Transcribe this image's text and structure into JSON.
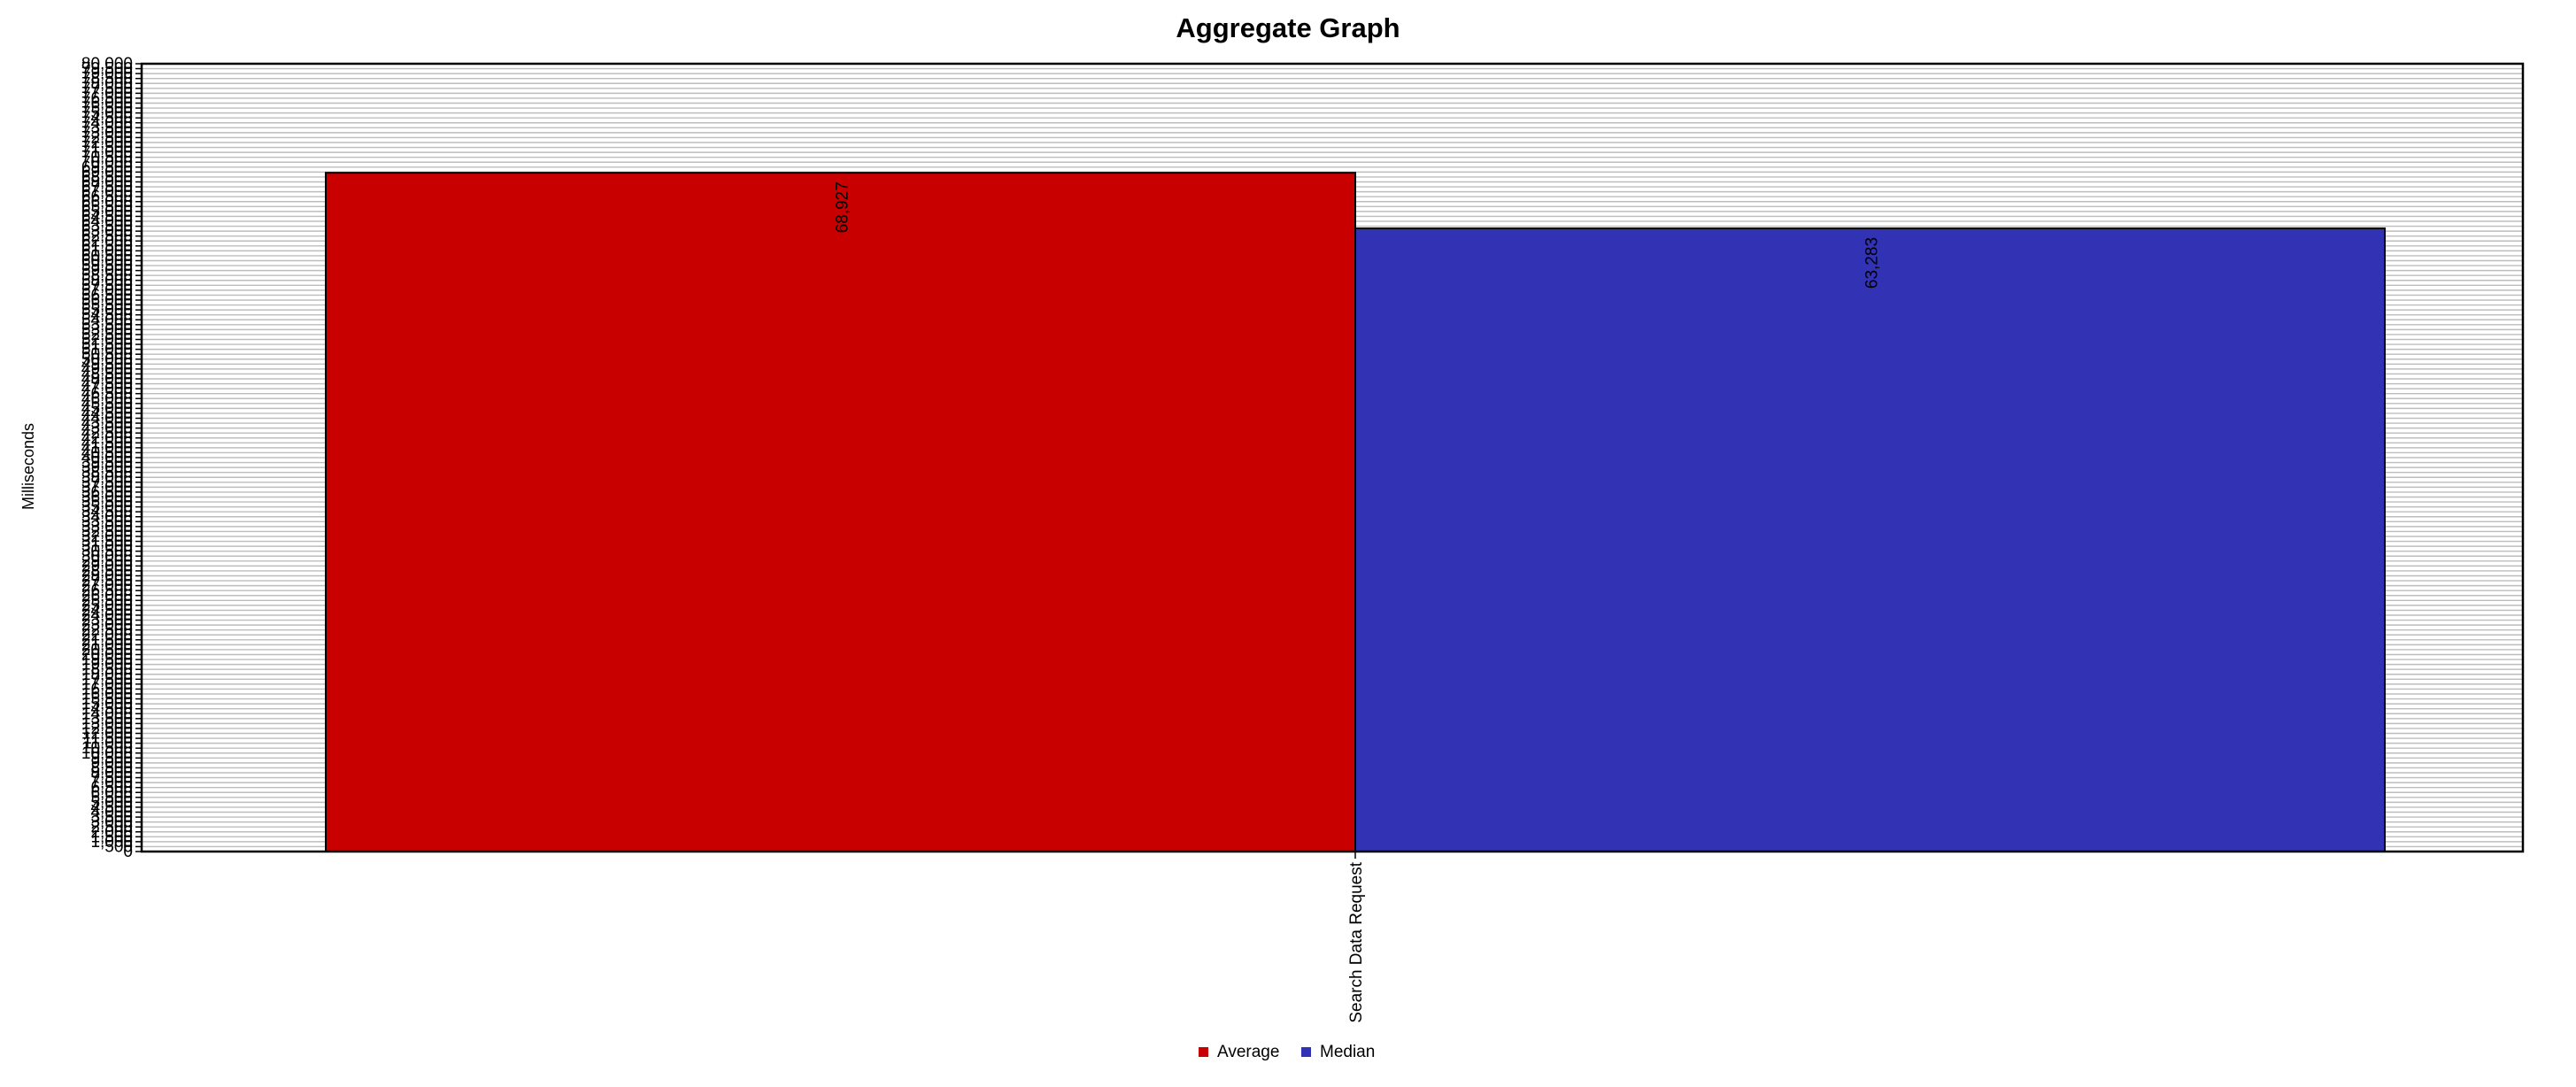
{
  "chart_data": {
    "type": "bar",
    "title": "Aggregate Graph",
    "xlabel": "",
    "ylabel": "Milliseconds",
    "categories": [
      "Search Data Request"
    ],
    "series": [
      {
        "name": "Average",
        "values": [
          68927
        ],
        "color": "#c80000"
      },
      {
        "name": "Median",
        "values": [
          63283
        ],
        "color": "#3232b4"
      }
    ],
    "data_labels": [
      "68,927",
      "63,283"
    ],
    "ylim": [
      0,
      80000
    ],
    "ytick_step": 500,
    "grid": true,
    "legend_position": "bottom-center"
  }
}
